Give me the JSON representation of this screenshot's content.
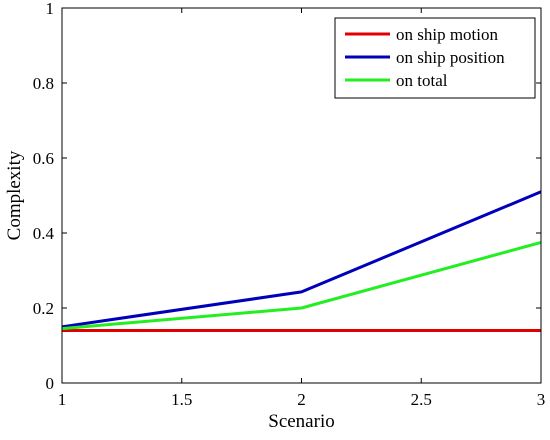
{
  "chart_data": {
    "type": "line",
    "title": "",
    "xlabel": "Scenario",
    "ylabel": "Complexity",
    "xlim": [
      1,
      3
    ],
    "ylim": [
      0,
      1
    ],
    "xticks": [
      "1",
      "1.5",
      "2",
      "2.5",
      "3"
    ],
    "yticks": [
      "0",
      "0.2",
      "0.4",
      "0.6",
      "0.8",
      "1"
    ],
    "xtick_values": [
      1,
      1.5,
      2,
      2.5,
      3
    ],
    "ytick_values": [
      0,
      0.2,
      0.4,
      0.6,
      0.8,
      1
    ],
    "x": [
      1,
      2,
      3
    ],
    "grid": false,
    "legend_position": "top-right",
    "series": [
      {
        "name": "on ship motion",
        "color": "#e00000",
        "values": [
          0.14,
          0.14,
          0.14
        ]
      },
      {
        "name": "on ship position",
        "color": "#0000bb",
        "values": [
          0.15,
          0.243,
          0.51
        ]
      },
      {
        "name": "on total",
        "color": "#22ee22",
        "values": [
          0.145,
          0.2,
          0.375
        ]
      }
    ]
  }
}
